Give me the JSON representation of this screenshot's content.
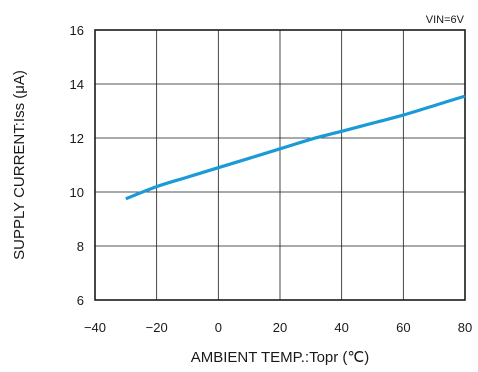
{
  "chart_data": {
    "type": "line",
    "condition": "VIN=6V",
    "xlabel": "AMBIENT TEMP.:Topr (℃)",
    "ylabel": "SUPPLY CURRENT:Iss (μA)",
    "xlim": [
      -40,
      80
    ],
    "ylim": [
      6,
      16
    ],
    "xticks": [
      -40,
      -20,
      0,
      20,
      40,
      60,
      80
    ],
    "yticks": [
      6,
      8,
      10,
      12,
      14,
      16
    ],
    "grid": true,
    "series": [
      {
        "color": "#1a9ad6",
        "x": [
          -30,
          -20,
          -10,
          0,
          10,
          20,
          30,
          40,
          50,
          60,
          70,
          80
        ],
        "y": [
          9.75,
          10.2,
          10.55,
          10.9,
          11.25,
          11.6,
          11.95,
          12.25,
          12.55,
          12.85,
          13.2,
          13.55
        ]
      }
    ]
  }
}
